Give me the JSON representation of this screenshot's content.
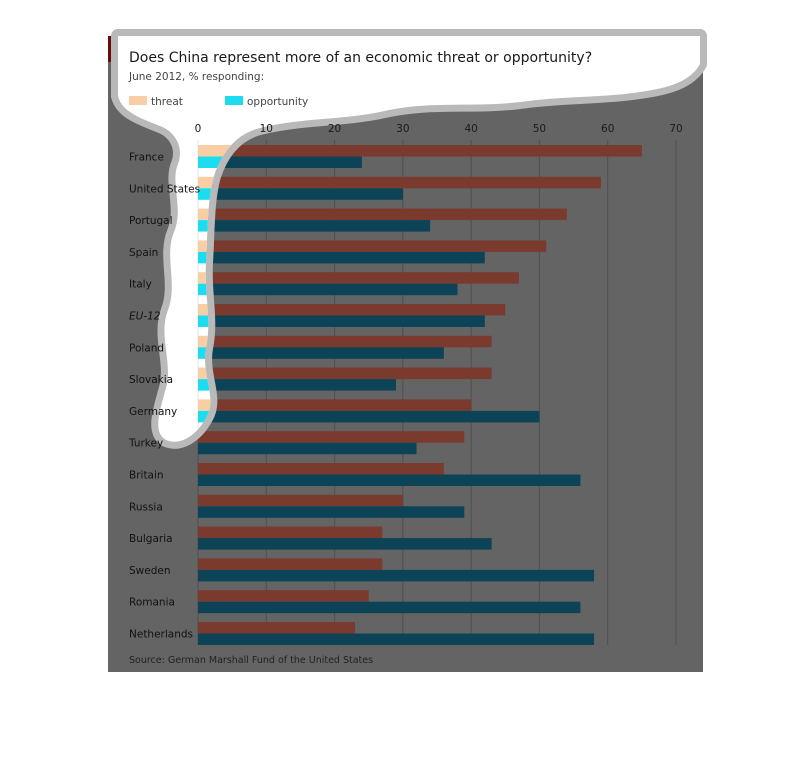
{
  "colors": {
    "panel_bg": "#646464",
    "threat_dim": "#7a3a2e",
    "opportunity_dim": "#0c4356",
    "threat_bright": "#f8cfa4",
    "opportunity_bright": "#1cdcef",
    "gridline": "#4f4f4f",
    "accent_red": "#6b0a0a",
    "mask_white": "#ffffff",
    "mask_outline": "#b9b9b9"
  },
  "chart_data": {
    "type": "bar",
    "orientation": "horizontal",
    "title": "Does China represent more of an economic threat or opportunity?",
    "subtitle": "June 2012, % responding:",
    "source": "Source: German Marshall Fund of the United States",
    "xlim": [
      0,
      70
    ],
    "x_ticks": [
      "0",
      "10",
      "20",
      "30",
      "40",
      "50",
      "60",
      "70"
    ],
    "grid": true,
    "legend": "top-left",
    "categories": [
      "France",
      "United States",
      "Portugal",
      "Spain",
      "Italy",
      "EU-12",
      "Poland",
      "Slovakia",
      "Germany",
      "Turkey",
      "Britain",
      "Russia",
      "Bulgaria",
      "Sweden",
      "Romania",
      "Netherlands"
    ],
    "italic_categories": [
      "EU-12"
    ],
    "series": [
      {
        "name": "threat",
        "values": [
          65,
          59,
          54,
          51,
          47,
          45,
          43,
          43,
          40,
          39,
          36,
          30,
          27,
          27,
          25,
          23
        ]
      },
      {
        "name": "opportunity",
        "values": [
          24,
          30,
          34,
          42,
          38,
          42,
          36,
          29,
          50,
          32,
          56,
          39,
          43,
          58,
          56,
          58
        ]
      }
    ]
  }
}
